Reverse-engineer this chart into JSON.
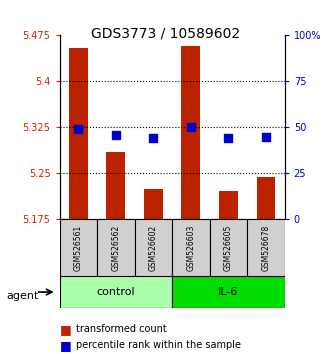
{
  "title": "GDS3773 / 10589602",
  "samples": [
    "GSM526561",
    "GSM526562",
    "GSM526602",
    "GSM526603",
    "GSM526605",
    "GSM526678"
  ],
  "groups": [
    "control",
    "control",
    "control",
    "IL-6",
    "IL-6",
    "IL-6"
  ],
  "transformed_counts": [
    5.455,
    5.285,
    5.225,
    5.458,
    5.222,
    5.245
  ],
  "percentile_ranks": [
    49,
    46,
    44,
    50,
    44,
    45
  ],
  "ylim_left": [
    5.175,
    5.475
  ],
  "ylim_right": [
    0,
    100
  ],
  "yticks_left": [
    5.175,
    5.25,
    5.325,
    5.4,
    5.475
  ],
  "yticks_right": [
    0,
    25,
    50,
    75,
    100
  ],
  "ytick_labels_left": [
    "5.175",
    "5.25",
    "5.325",
    "5.4",
    "5.475"
  ],
  "ytick_labels_right": [
    "0",
    "25",
    "50",
    "75",
    "100%"
  ],
  "hlines": [
    5.25,
    5.325,
    5.4
  ],
  "bar_color": "#bb2200",
  "dot_color": "#0000cc",
  "group_colors": {
    "control": "#aaffaa",
    "IL-6": "#00ee00"
  },
  "group_label_color": "black",
  "left_tick_color": "#cc2200",
  "right_tick_color": "#0000cc",
  "title_fontsize": 11,
  "legend_labels": [
    "transformed count",
    "percentile rank within the sample"
  ]
}
